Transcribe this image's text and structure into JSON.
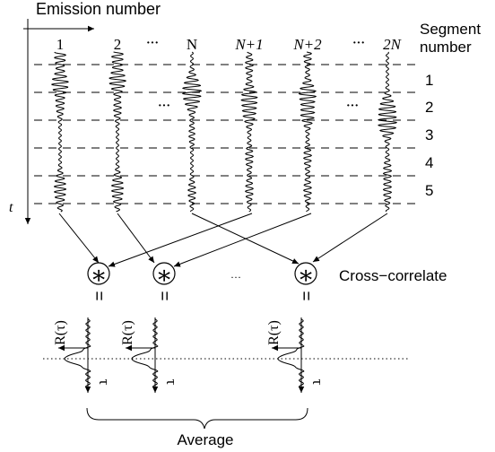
{
  "labels": {
    "emission_axis": "Emission number",
    "segment_axis_line1": "Segment",
    "segment_axis_line2": "number",
    "time_axis": "t",
    "cross_correlate": "Cross−correlate",
    "average": "Average",
    "correlation_label": "R(τ)",
    "tau": "τ",
    "equals": "=",
    "ellipsis": "···",
    "correlate_symbol": "∗"
  },
  "emissions": [
    "1",
    "2",
    "···",
    "N",
    "N+1",
    "N+2",
    "···",
    "2N"
  ],
  "segments": [
    "1",
    "2",
    "3",
    "4",
    "5"
  ]
}
